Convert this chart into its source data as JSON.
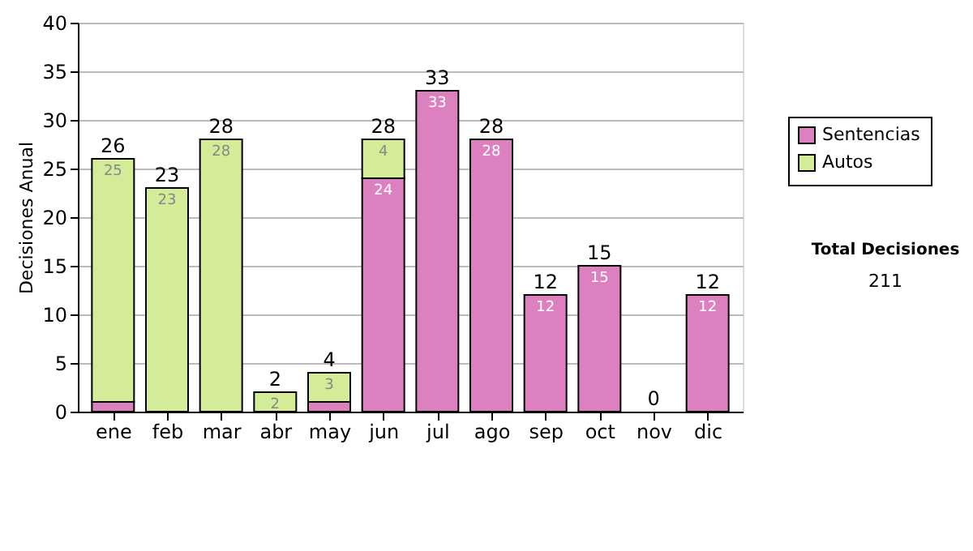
{
  "chart_data": {
    "type": "bar",
    "stacked": true,
    "ylabel": "Decisiones Anual",
    "categories": [
      "ene",
      "feb",
      "mar",
      "abr",
      "may",
      "jun",
      "jul",
      "ago",
      "sep",
      "oct",
      "nov",
      "dic"
    ],
    "series": [
      {
        "name": "Sentencias",
        "color": "#dc80c0",
        "values": [
          1,
          0,
          0,
          0,
          1,
          24,
          33,
          28,
          12,
          15,
          0,
          12
        ],
        "value_labels": [
          null,
          null,
          null,
          null,
          null,
          "24",
          "33",
          "28",
          "12",
          "15",
          null,
          "12"
        ]
      },
      {
        "name": "Autos",
        "color": "#d4eb98",
        "values": [
          25,
          23,
          28,
          2,
          3,
          4,
          0,
          0,
          0,
          0,
          0,
          0
        ],
        "value_labels": [
          "25",
          "23",
          "28",
          "2",
          "3",
          "4",
          null,
          null,
          null,
          null,
          null,
          null
        ]
      }
    ],
    "totals": [
      "26",
      "23",
      "28",
      "2",
      "4",
      "28",
      "33",
      "28",
      "12",
      "15",
      "0",
      "12"
    ],
    "ylim": [
      0,
      40
    ],
    "yticks": [
      0,
      5,
      10,
      15,
      20,
      25,
      30,
      35,
      40
    ],
    "grid": "y",
    "legend": "right",
    "annotations": [
      "Total Decisiones",
      "211"
    ]
  }
}
